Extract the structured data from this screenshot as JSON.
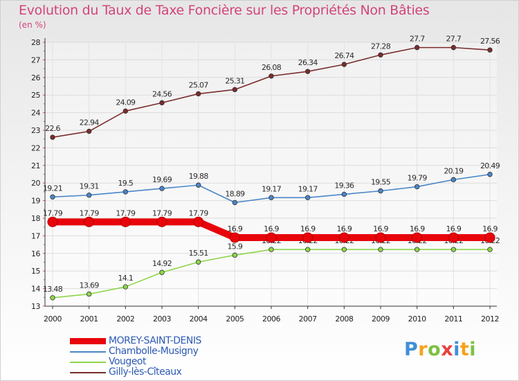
{
  "header": {
    "title": "Evolution du Taux de Taxe Foncière sur les Propriétés Non Bâties",
    "subtitle": "(en %)"
  },
  "logo": {
    "text": "Proxiti",
    "letters": [
      "P",
      "r",
      "o",
      "x",
      "i",
      "t",
      "i"
    ]
  },
  "chart_data": {
    "type": "line",
    "title": "Evolution du Taux de Taxe Foncière sur les Propriétés Non Bâties",
    "ylabel": "(en %)",
    "xlabel": "",
    "x": [
      "2000",
      "2001",
      "2002",
      "2003",
      "2004",
      "2005",
      "2006",
      "2007",
      "2008",
      "2009",
      "2010",
      "2011",
      "2012"
    ],
    "ylim": [
      13,
      28
    ],
    "yticks": [
      "13",
      "14",
      "15",
      "16",
      "17",
      "18",
      "19",
      "20",
      "21",
      "22",
      "23",
      "24",
      "25",
      "26",
      "27",
      "28"
    ],
    "grid": true,
    "legend_position": "bottom-left",
    "series": [
      {
        "name": "MOREY-SAINT-DENIS",
        "color": "#e8040b",
        "emphasis": true,
        "values": [
          17.79,
          17.79,
          17.79,
          17.79,
          17.79,
          16.9,
          16.9,
          16.9,
          16.9,
          16.9,
          16.9,
          16.9,
          16.9
        ],
        "labels": [
          "17.79",
          "17.79",
          "17.79",
          "17.79",
          "17.79",
          "16.9",
          "16.9",
          "16.9",
          "16.9",
          "16.9",
          "16.9",
          "16.9",
          "16.9"
        ]
      },
      {
        "name": "Chambolle-Musigny",
        "color": "#4a86c8",
        "emphasis": false,
        "values": [
          19.21,
          19.31,
          19.5,
          19.69,
          19.88,
          18.89,
          19.17,
          19.17,
          19.36,
          19.55,
          19.79,
          20.19,
          20.49
        ],
        "labels": [
          "19.21",
          "19.31",
          "19.5",
          "19.69",
          "19.88",
          "18.89",
          "19.17",
          "19.17",
          "19.36",
          "19.55",
          "19.79",
          "20.19",
          "20.49"
        ]
      },
      {
        "name": "Vougeot",
        "color": "#8ed64a",
        "emphasis": false,
        "values": [
          13.48,
          13.69,
          14.1,
          14.92,
          15.51,
          15.9,
          16.22,
          16.22,
          16.22,
          16.22,
          16.22,
          16.22,
          16.22
        ],
        "labels": [
          "13.48",
          "13.69",
          "14.1",
          "14.92",
          "15.51",
          "15.9",
          "16.22",
          "16.22",
          "16.22",
          "16.22",
          "16.22",
          "16.22",
          "16.22"
        ]
      },
      {
        "name": "Gilly-lès-Cîteaux",
        "color": "#7b2c2c",
        "emphasis": false,
        "values": [
          22.6,
          22.94,
          24.09,
          24.56,
          25.07,
          25.31,
          26.08,
          26.34,
          26.74,
          27.28,
          27.7,
          27.7,
          27.56
        ],
        "labels": [
          "22.6",
          "22.94",
          "24.09",
          "24.56",
          "25.07",
          "25.31",
          "26.08",
          "26.34",
          "26.74",
          "27.28",
          "27.7",
          "27.7",
          "27.56"
        ]
      }
    ]
  }
}
